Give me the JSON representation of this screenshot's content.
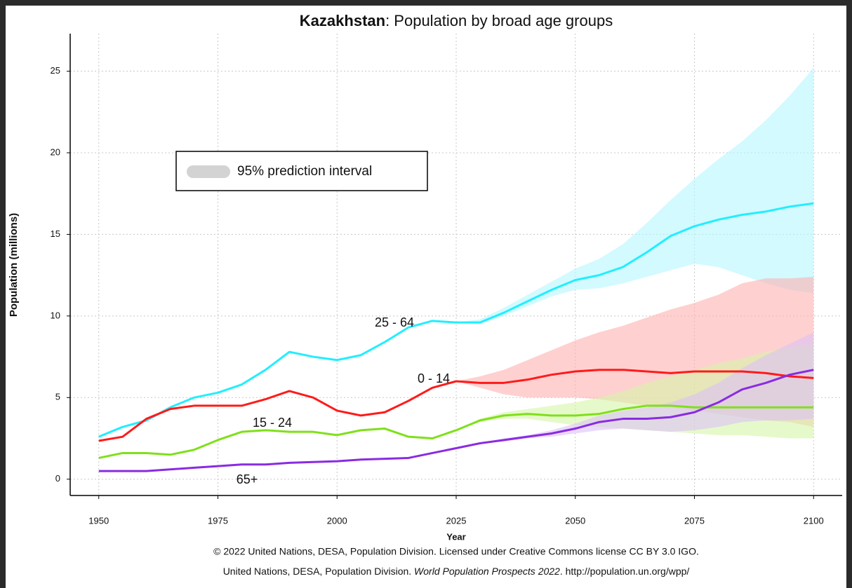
{
  "chart_data": {
    "type": "line",
    "title": {
      "country": "Kazakhstan",
      "text": ": Population by broad age groups"
    },
    "x_label": "Year",
    "y_label": "Population (millions)",
    "legend_label": "95% prediction interval",
    "band_legend_color": "#d3d3d3",
    "footer": [
      "© 2022 United Nations, DESA, Population Division. Licensed under Creative Commons license CC BY 3.0 IGO.",
      [
        "United Nations, DESA, Population Division. ",
        "World Population Prospects 2022",
        ". http://population.un.org/wpp/"
      ]
    ],
    "x": [
      1950,
      1955,
      1960,
      1965,
      1970,
      1975,
      1980,
      1985,
      1990,
      1995,
      2000,
      2005,
      2010,
      2015,
      2020,
      2025,
      2030,
      2035,
      2040,
      2045,
      2050,
      2055,
      2060,
      2065,
      2070,
      2075,
      2080,
      2085,
      2090,
      2095,
      2100
    ],
    "xlim": [
      1944,
      2106
    ],
    "xticks": [
      1950,
      1975,
      2000,
      2025,
      2050,
      2075,
      2100
    ],
    "ylim": [
      -1,
      27.3
    ],
    "yticks": [
      0,
      5,
      10,
      15,
      20,
      25
    ],
    "grid": true,
    "series": [
      {
        "name": "25 - 64",
        "color": "#22eeff",
        "band_color": "#b4f6ff",
        "values": [
          2.6,
          3.2,
          3.6,
          4.4,
          5.0,
          5.3,
          5.8,
          6.7,
          7.8,
          7.5,
          7.3,
          7.6,
          8.4,
          9.3,
          9.7,
          9.6,
          9.6,
          10.2,
          10.9,
          11.6,
          12.2,
          12.5,
          13.0,
          13.9,
          14.9,
          15.5,
          15.9,
          16.2,
          16.4,
          16.7,
          16.9
        ],
        "upper": [
          null,
          null,
          null,
          null,
          null,
          null,
          null,
          null,
          null,
          null,
          null,
          null,
          null,
          null,
          null,
          9.6,
          9.8,
          10.5,
          11.3,
          12.1,
          12.9,
          13.5,
          14.4,
          15.7,
          17.1,
          18.4,
          19.6,
          20.7,
          22.0,
          23.5,
          25.2
        ],
        "lower": [
          null,
          null,
          null,
          null,
          null,
          null,
          null,
          null,
          null,
          null,
          null,
          null,
          null,
          null,
          null,
          9.6,
          9.5,
          10.0,
          10.6,
          11.2,
          11.6,
          11.7,
          12.0,
          12.4,
          12.8,
          13.2,
          13.0,
          12.5,
          12.0,
          11.6,
          11.4
        ]
      },
      {
        "name": "0 - 14",
        "color": "#ff1a1a",
        "band_color": "#ffb0b0",
        "values": [
          2.35,
          2.6,
          3.7,
          4.3,
          4.5,
          4.5,
          4.5,
          4.9,
          5.4,
          5.0,
          4.2,
          3.9,
          4.1,
          4.8,
          5.6,
          6.0,
          5.9,
          5.9,
          6.1,
          6.4,
          6.6,
          6.7,
          6.7,
          6.6,
          6.5,
          6.6,
          6.6,
          6.6,
          6.5,
          6.3,
          6.2
        ],
        "upper": [
          null,
          null,
          null,
          null,
          null,
          null,
          null,
          null,
          null,
          null,
          null,
          null,
          null,
          null,
          null,
          6.0,
          6.3,
          6.7,
          7.3,
          7.9,
          8.5,
          9.0,
          9.4,
          9.9,
          10.4,
          10.8,
          11.3,
          12.0,
          12.3,
          12.3,
          12.4
        ],
        "lower": [
          null,
          null,
          null,
          null,
          null,
          null,
          null,
          null,
          null,
          null,
          null,
          null,
          null,
          null,
          null,
          6.0,
          5.6,
          5.2,
          5.0,
          5.0,
          5.0,
          4.9,
          4.7,
          4.5,
          4.4,
          4.2,
          4.0,
          3.8,
          3.6,
          3.5,
          3.2
        ]
      },
      {
        "name": "15 - 24",
        "color": "#7fe01a",
        "band_color": "#d6f5a8",
        "values": [
          1.3,
          1.6,
          1.6,
          1.5,
          1.8,
          2.4,
          2.9,
          3.0,
          2.9,
          2.9,
          2.7,
          3.0,
          3.1,
          2.6,
          2.5,
          3.0,
          3.6,
          3.9,
          4.0,
          3.9,
          3.9,
          4.0,
          4.3,
          4.5,
          4.5,
          4.4,
          4.4,
          4.4,
          4.4,
          4.4,
          4.4
        ],
        "upper": [
          null,
          null,
          null,
          null,
          null,
          null,
          null,
          null,
          null,
          null,
          null,
          null,
          null,
          null,
          null,
          3.0,
          3.7,
          4.1,
          4.3,
          4.5,
          4.7,
          5.0,
          5.4,
          5.9,
          6.3,
          6.7,
          7.1,
          7.4,
          7.8,
          8.1,
          8.3
        ],
        "lower": [
          null,
          null,
          null,
          null,
          null,
          null,
          null,
          null,
          null,
          null,
          null,
          null,
          null,
          null,
          null,
          3.0,
          3.5,
          3.7,
          3.7,
          3.5,
          3.3,
          3.2,
          3.1,
          3.0,
          2.9,
          2.8,
          2.7,
          2.7,
          2.6,
          2.5,
          2.5
        ]
      },
      {
        "name": "65+",
        "color": "#8a2be2",
        "band_color": "#dcc2f7",
        "values": [
          0.5,
          0.5,
          0.5,
          0.6,
          0.7,
          0.8,
          0.9,
          0.9,
          1.0,
          1.05,
          1.1,
          1.2,
          1.25,
          1.3,
          1.6,
          1.9,
          2.2,
          2.4,
          2.6,
          2.8,
          3.1,
          3.5,
          3.7,
          3.7,
          3.8,
          4.1,
          4.7,
          5.5,
          5.9,
          6.4,
          6.7
        ],
        "upper": [
          null,
          null,
          null,
          null,
          null,
          null,
          null,
          null,
          null,
          null,
          null,
          null,
          null,
          null,
          null,
          1.9,
          2.2,
          2.5,
          2.7,
          3.0,
          3.4,
          3.9,
          4.2,
          4.4,
          4.7,
          5.2,
          5.9,
          6.8,
          7.6,
          8.3,
          9.0
        ],
        "lower": [
          null,
          null,
          null,
          null,
          null,
          null,
          null,
          null,
          null,
          null,
          null,
          null,
          null,
          null,
          null,
          1.9,
          2.2,
          2.3,
          2.5,
          2.6,
          2.8,
          3.0,
          3.1,
          3.0,
          2.9,
          3.0,
          3.2,
          3.5,
          3.6,
          3.6,
          3.7
        ]
      }
    ]
  }
}
